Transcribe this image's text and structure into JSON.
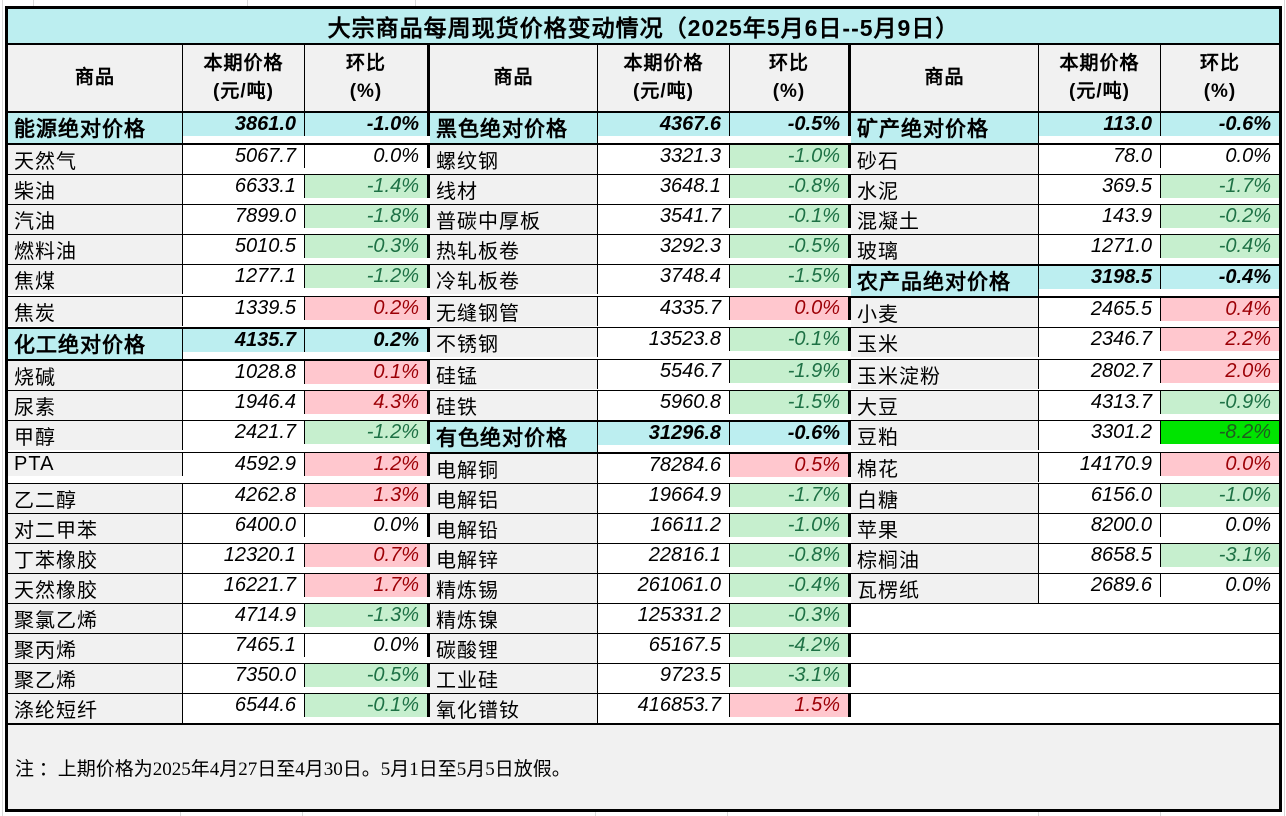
{
  "title": "大宗商品每周现货价格变动情况（2025年5月6日--5月9日）",
  "header": {
    "commodity": "商品",
    "price": "本期价格\n(元/吨)",
    "chg": "环比\n(%)"
  },
  "note": "注 ：上期价格为2025年4月27日至4月30日。5月1日至5月5日放假。",
  "colors": {
    "cyan": "#BCEEF0",
    "grey": "#F1F1F1",
    "green_bg": "#C6EFCE",
    "green_text": "#1E7145",
    "red_bg": "#FFC7CE",
    "red_text": "#9C0006",
    "bright_green_bg": "#00E400",
    "bright_green_text": "#1F5C1F",
    "border": "#000000"
  },
  "groups": [
    {
      "rows": [
        {
          "name": "能源绝对价格",
          "price": "3861.0",
          "chg": "-1.0%",
          "type": "section"
        },
        {
          "name": "天然气",
          "price": "5067.7",
          "chg": "0.0%",
          "type": "flat"
        },
        {
          "name": "柴油",
          "price": "6633.1",
          "chg": "-1.4%",
          "type": "down"
        },
        {
          "name": "汽油",
          "price": "7899.0",
          "chg": "-1.8%",
          "type": "down"
        },
        {
          "name": "燃料油",
          "price": "5010.5",
          "chg": "-0.3%",
          "type": "down"
        },
        {
          "name": "焦煤",
          "price": "1277.1",
          "chg": "-1.2%",
          "type": "down"
        },
        {
          "name": "焦炭",
          "price": "1339.5",
          "chg": "0.2%",
          "type": "up"
        },
        {
          "name": "化工绝对价格",
          "price": "4135.7",
          "chg": "0.2%",
          "type": "section"
        },
        {
          "name": "烧碱",
          "price": "1028.8",
          "chg": "0.1%",
          "type": "up"
        },
        {
          "name": "尿素",
          "price": "1946.4",
          "chg": "4.3%",
          "type": "up"
        },
        {
          "name": "甲醇",
          "price": "2421.7",
          "chg": "-1.2%",
          "type": "down"
        },
        {
          "name": "PTA",
          "price": "4592.9",
          "chg": "1.2%",
          "type": "up"
        },
        {
          "name": "乙二醇",
          "price": "4262.8",
          "chg": "1.3%",
          "type": "up"
        },
        {
          "name": "对二甲苯",
          "price": "6400.0",
          "chg": "0.0%",
          "type": "flat"
        },
        {
          "name": "丁苯橡胶",
          "price": "12320.1",
          "chg": "0.7%",
          "type": "up"
        },
        {
          "name": "天然橡胶",
          "price": "16221.7",
          "chg": "1.7%",
          "type": "up"
        },
        {
          "name": "聚氯乙烯",
          "price": "4714.9",
          "chg": "-1.3%",
          "type": "down"
        },
        {
          "name": "聚丙烯",
          "price": "7465.1",
          "chg": "0.0%",
          "type": "flat"
        },
        {
          "name": "聚乙烯",
          "price": "7350.0",
          "chg": "-0.5%",
          "type": "down"
        },
        {
          "name": "涤纶短纤",
          "price": "6544.6",
          "chg": "-0.1%",
          "type": "down"
        }
      ]
    },
    {
      "rows": [
        {
          "name": "黑色绝对价格",
          "price": "4367.6",
          "chg": "-0.5%",
          "type": "section"
        },
        {
          "name": "螺纹钢",
          "price": "3321.3",
          "chg": "-1.0%",
          "type": "down"
        },
        {
          "name": "线材",
          "price": "3648.1",
          "chg": "-0.8%",
          "type": "down"
        },
        {
          "name": "普碳中厚板",
          "price": "3541.7",
          "chg": "-0.1%",
          "type": "down"
        },
        {
          "name": "热轧板卷",
          "price": "3292.3",
          "chg": "-0.5%",
          "type": "down"
        },
        {
          "name": "冷轧板卷",
          "price": "3748.4",
          "chg": "-1.5%",
          "type": "down"
        },
        {
          "name": "无缝钢管",
          "price": "4335.7",
          "chg": "0.0%",
          "type": "up"
        },
        {
          "name": "不锈钢",
          "price": "13523.8",
          "chg": "-0.1%",
          "type": "down"
        },
        {
          "name": "硅锰",
          "price": "5546.7",
          "chg": "-1.9%",
          "type": "down"
        },
        {
          "name": "硅铁",
          "price": "5960.8",
          "chg": "-1.5%",
          "type": "down"
        },
        {
          "name": "有色绝对价格",
          "price": "31296.8",
          "chg": "-0.6%",
          "type": "section"
        },
        {
          "name": "电解铜",
          "price": "78284.6",
          "chg": "0.5%",
          "type": "up"
        },
        {
          "name": "电解铝",
          "price": "19664.9",
          "chg": "-1.7%",
          "type": "down"
        },
        {
          "name": "电解铅",
          "price": "16611.2",
          "chg": "-1.0%",
          "type": "down"
        },
        {
          "name": "电解锌",
          "price": "22816.1",
          "chg": "-0.8%",
          "type": "down"
        },
        {
          "name": "精炼锡",
          "price": "261061.0",
          "chg": "-0.4%",
          "type": "down"
        },
        {
          "name": "精炼镍",
          "price": "125331.2",
          "chg": "-0.3%",
          "type": "down"
        },
        {
          "name": "碳酸锂",
          "price": "65167.5",
          "chg": "-4.2%",
          "type": "down"
        },
        {
          "name": "工业硅",
          "price": "9723.5",
          "chg": "-3.1%",
          "type": "down"
        },
        {
          "name": "氧化镨钕",
          "price": "416853.7",
          "chg": "1.5%",
          "type": "up"
        }
      ]
    },
    {
      "rows": [
        {
          "name": "矿产绝对价格",
          "price": "113.0",
          "chg": "-0.6%",
          "type": "section"
        },
        {
          "name": "砂石",
          "price": "78.0",
          "chg": "0.0%",
          "type": "flat"
        },
        {
          "name": "水泥",
          "price": "369.5",
          "chg": "-1.7%",
          "type": "down"
        },
        {
          "name": "混凝土",
          "price": "143.9",
          "chg": "-0.2%",
          "type": "down"
        },
        {
          "name": "玻璃",
          "price": "1271.0",
          "chg": "-0.4%",
          "type": "down"
        },
        {
          "name": "农产品绝对价格",
          "price": "3198.5",
          "chg": "-0.4%",
          "type": "section"
        },
        {
          "name": "小麦",
          "price": "2465.5",
          "chg": "0.4%",
          "type": "up"
        },
        {
          "name": "玉米",
          "price": "2346.7",
          "chg": "2.2%",
          "type": "up"
        },
        {
          "name": "玉米淀粉",
          "price": "2802.7",
          "chg": "2.0%",
          "type": "up"
        },
        {
          "name": "大豆",
          "price": "4313.7",
          "chg": "-0.9%",
          "type": "down"
        },
        {
          "name": "豆粕",
          "price": "3301.2",
          "chg": "-8.2%",
          "type": "strong_down"
        },
        {
          "name": "棉花",
          "price": "14170.9",
          "chg": "0.0%",
          "type": "up"
        },
        {
          "name": "白糖",
          "price": "6156.0",
          "chg": "-1.0%",
          "type": "down"
        },
        {
          "name": "苹果",
          "price": "8200.0",
          "chg": "0.0%",
          "type": "flat"
        },
        {
          "name": "棕榈油",
          "price": "8658.5",
          "chg": "-3.1%",
          "type": "down"
        },
        {
          "name": "瓦楞纸",
          "price": "2689.6",
          "chg": "0.0%",
          "type": "flat"
        },
        {
          "name": "",
          "price": "",
          "chg": "",
          "type": "empty"
        },
        {
          "name": "",
          "price": "",
          "chg": "",
          "type": "empty"
        },
        {
          "name": "",
          "price": "",
          "chg": "",
          "type": "empty"
        },
        {
          "name": "",
          "price": "",
          "chg": "",
          "type": "empty"
        }
      ]
    }
  ]
}
